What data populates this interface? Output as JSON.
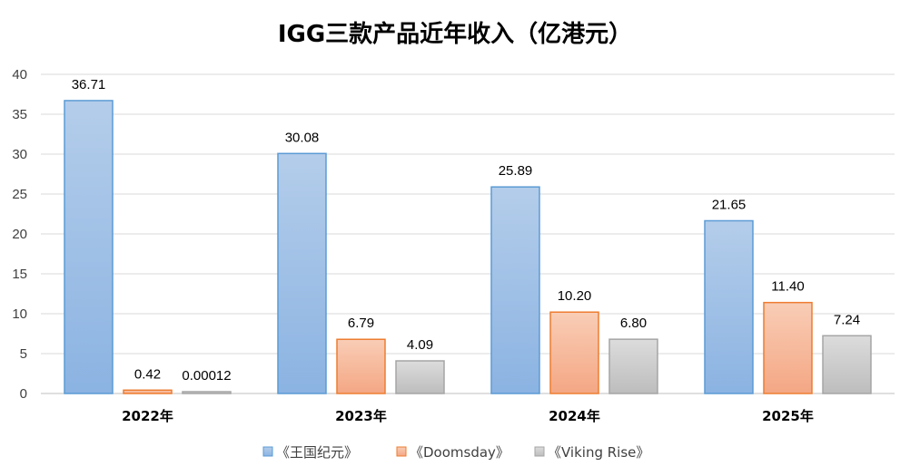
{
  "chart_data": {
    "type": "bar",
    "title": "IGG三款产品近年收入（亿港元）",
    "categories": [
      "2022年",
      "2023年",
      "2024年",
      "2025年"
    ],
    "series": [
      {
        "name": "《王国纪元》",
        "values": [
          36.71,
          30.08,
          25.89,
          21.65
        ],
        "labels": [
          "36.71",
          "30.08",
          "25.89",
          "21.65"
        ],
        "color_top": "#b4cdea",
        "color_bottom": "#8bb3e2",
        "stroke": "#5b9bd5"
      },
      {
        "name": "《Doomsday》",
        "values": [
          0.42,
          6.79,
          10.2,
          11.4
        ],
        "labels": [
          "0.42",
          "6.79",
          "10.20",
          "11.40"
        ],
        "color_top": "#f9cdb6",
        "color_bottom": "#f4a784",
        "stroke": "#ed7d31"
      },
      {
        "name": "《Viking Rise》",
        "values": [
          0.00012,
          4.09,
          6.8,
          7.24
        ],
        "labels": [
          "0.00012",
          "4.09",
          "6.80",
          "7.24"
        ],
        "color_top": "#dcdcdc",
        "color_bottom": "#bdbdbd",
        "stroke": "#a5a5a5"
      }
    ],
    "ylim": [
      0,
      40
    ],
    "yticks": [
      0,
      5,
      10,
      15,
      20,
      25,
      30,
      35,
      40
    ],
    "xlabel": "",
    "ylabel": "",
    "grid": true,
    "legend": "bottom"
  }
}
